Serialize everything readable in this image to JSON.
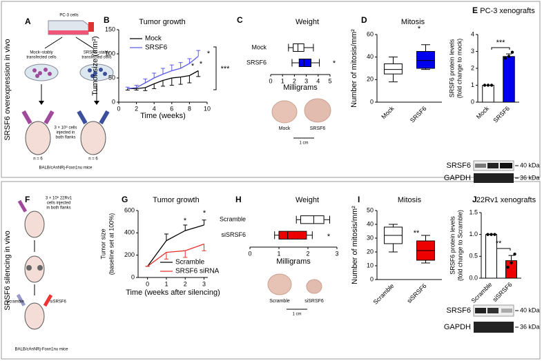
{
  "chart_data": [
    {
      "panel": "B",
      "type": "line",
      "title": "Tumor growth",
      "xlabel": "Time (weeks)",
      "ylabel": "Tumor size (mm²)",
      "xlim": [
        0,
        10
      ],
      "xticks": [
        0,
        2,
        4,
        6,
        8,
        10
      ],
      "ylim": [
        0,
        150
      ],
      "yticks": [
        0,
        50,
        100,
        150
      ],
      "x": [
        1,
        2,
        3,
        4,
        5,
        6,
        7,
        8,
        9
      ],
      "series": [
        {
          "name": "Mock",
          "color": "#000000",
          "error_side": "down",
          "values": [
            28,
            28,
            30,
            38,
            45,
            50,
            52,
            55,
            65
          ],
          "errors": [
            3,
            3,
            6,
            10,
            12,
            15,
            15,
            15,
            12
          ]
        },
        {
          "name": "SRSF6",
          "color": "#5a5ae6",
          "error_side": "up",
          "values": [
            28,
            30,
            40,
            50,
            58,
            65,
            70,
            80,
            95
          ],
          "errors": [
            3,
            5,
            8,
            10,
            12,
            12,
            12,
            10,
            12
          ]
        }
      ],
      "annotations": [
        "*",
        "*",
        "*",
        "***"
      ]
    },
    {
      "panel": "C",
      "type": "box",
      "orientation": "horizontal",
      "title": "Weight",
      "xlabel": "Milligrams",
      "xlim": [
        0,
        5
      ],
      "xticks": [
        0,
        1,
        2,
        3,
        4,
        5
      ],
      "categories": [
        "Mock",
        "SRSF6"
      ],
      "stats": [
        [
          1.5,
          1.9,
          2.3,
          2.8,
          3.6
        ],
        [
          1.8,
          2.4,
          2.8,
          3.4,
          4.1
        ]
      ],
      "colors": [
        "#ffffff",
        "#0000ee"
      ],
      "annotations": [
        "*"
      ]
    },
    {
      "panel": "D",
      "type": "box",
      "orientation": "vertical",
      "title": "Mitosis",
      "ylabel": "Number of mitosis/mm²",
      "ylim": [
        0,
        60
      ],
      "yticks": [
        0,
        20,
        40,
        60
      ],
      "categories": [
        "Mock",
        "SRSF6"
      ],
      "stats": [
        [
          18,
          25,
          29,
          34,
          40
        ],
        [
          29,
          30,
          37,
          45,
          51
        ]
      ],
      "colors": [
        "#ffffff",
        "#0000ee"
      ],
      "annotations": [
        "*"
      ]
    },
    {
      "panel": "E",
      "type": "bar",
      "title": "PC-3 xenografts",
      "ylabel": [
        "SRSF6 protein levels",
        "(fold change to mock)"
      ],
      "ylim": [
        0,
        4
      ],
      "yticks": [
        0,
        1,
        2,
        3,
        4
      ],
      "categories": [
        "Mock",
        "SRSF6"
      ],
      "values": [
        1,
        2.7
      ],
      "errors": [
        0,
        0.15
      ],
      "colors": [
        "#ffffff",
        "#0000ee"
      ],
      "points": [
        [
          1,
          1,
          1
        ],
        [
          2.6,
          2.7,
          2.95
        ]
      ],
      "annotations": [
        "***"
      ]
    },
    {
      "panel": "G",
      "type": "line",
      "title": "Tumor growth",
      "xlabel": "Time (weeks after silencing)",
      "ylabel": [
        "Tumor size",
        "(baseline set at 100%)"
      ],
      "xlim": [
        -0.5,
        3.2
      ],
      "xticks": [
        0,
        1,
        2,
        3
      ],
      "ylim": [
        0,
        600
      ],
      "yticks": [
        0,
        200,
        400,
        600
      ],
      "x": [
        0,
        1,
        2,
        3
      ],
      "series": [
        {
          "name": "Scramble",
          "color": "#000000",
          "error_side": "up",
          "values": [
            100,
            330,
            420,
            470
          ],
          "errors": [
            0,
            60,
            50,
            45
          ]
        },
        {
          "name": "SRSF6 siRNA",
          "color": "#e8302a",
          "error_side": "down",
          "values": [
            100,
            225,
            240,
            300
          ],
          "errors": [
            0,
            60,
            60,
            60
          ]
        }
      ],
      "annotations": [
        "*",
        "*"
      ]
    },
    {
      "panel": "H",
      "type": "box",
      "orientation": "horizontal",
      "title": "Weight",
      "xlabel": "Milligrams",
      "xlim": [
        0,
        3
      ],
      "xticks": [
        0,
        1,
        2,
        3
      ],
      "categories": [
        "Scramble",
        "siSRSF6"
      ],
      "stats": [
        [
          1.6,
          1.75,
          2.2,
          2.55,
          2.75
        ],
        [
          0.85,
          1.0,
          1.3,
          1.95,
          2.15
        ]
      ],
      "colors": [
        "#ffffff",
        "#ee0000"
      ],
      "annotations": [
        "*"
      ]
    },
    {
      "panel": "I",
      "type": "box",
      "orientation": "vertical",
      "title": "Mitosis",
      "ylabel": "Number of mitosis/mm²",
      "ylim": [
        0,
        50
      ],
      "yticks": [
        0,
        10,
        20,
        30,
        40,
        50
      ],
      "categories": [
        "Scramble",
        "siSRSF6"
      ],
      "stats": [
        [
          20,
          26,
          32,
          38,
          40
        ],
        [
          12,
          14,
          21,
          28,
          32
        ]
      ],
      "colors": [
        "#ffffff",
        "#ee0000"
      ],
      "annotations": [
        "**"
      ]
    },
    {
      "panel": "J",
      "type": "bar",
      "title": "22Rv1 xenografts",
      "ylabel": [
        "SRSF6 protein levels",
        "(fold change to Scramble)"
      ],
      "ylim": [
        0,
        1.5
      ],
      "yticks": [
        {
          "value": 0,
          "label": "0.0"
        },
        0.5,
        {
          "value": 1,
          "label": "1.0"
        },
        1.5
      ],
      "categories": [
        "Scramble",
        "siSRSF6"
      ],
      "values": [
        1,
        0.4
      ],
      "errors": [
        0,
        0.12
      ],
      "colors": [
        "#ffffff",
        "#ee0000"
      ],
      "points": [
        [
          1,
          1,
          1
        ],
        [
          0.25,
          0.35,
          0.55
        ]
      ],
      "annotations": [
        "**"
      ]
    }
  ],
  "figure": {
    "row_labels": [
      "SRSF6 overexpression in vivo",
      "SRSF6 silencing in vivo"
    ],
    "A": {
      "letter": "A",
      "cells": "PC-3 cells",
      "mock_cells": [
        "Mock–stably",
        "transfected cells"
      ],
      "srsf6_cells": [
        "SRSF6–stably",
        "transfected cells"
      ],
      "injection": [
        "3 × 10⁶ cells",
        "injected in",
        "both flanks"
      ],
      "n": [
        "n = 6",
        "n = 6"
      ],
      "mice": "BALB/cAnNRj-Foxn1nu mice"
    },
    "F": {
      "letter": "F",
      "injection": [
        "3 × 10⁶ 22Rv1",
        "cells injected",
        "in both flanks"
      ],
      "left": "Scramble",
      "right": "siSRSF6",
      "mice": "BALB/cAnNRj-Foxn1nu mice"
    },
    "C_photos": {
      "labels": [
        "Mock",
        "SRSF6"
      ],
      "scale": "1 cm"
    },
    "H_photos": {
      "labels": [
        "Scramble",
        "siSRSF6"
      ],
      "scale": "1 cm"
    },
    "E_blot": {
      "rows": [
        "SRSF6",
        "GAPDH"
      ],
      "sizes": [
        "40 kDa",
        "36 kDa"
      ]
    },
    "J_blot": {
      "rows": [
        "SRSF6",
        "GAPDH"
      ],
      "sizes": [
        "40 kDa",
        "36 kDa"
      ]
    }
  }
}
